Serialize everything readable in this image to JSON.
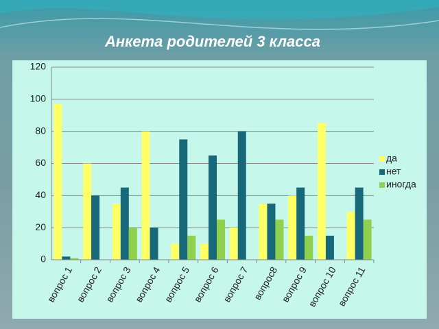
{
  "chart_data": {
    "type": "bar",
    "title": "Анкета родителей 3 класса",
    "categories": [
      "вопрос 1",
      "вопрос 2",
      "вопрос 3",
      "вопрос 4",
      "вопрос 5",
      "вопрос 6",
      "вопрос 7",
      "вопрос8",
      "вопрос 9",
      "вопрос 10",
      "вопрос 11"
    ],
    "series": [
      {
        "name": "да",
        "color": "#ffff66",
        "values": [
          97,
          60,
          35,
          80,
          10,
          10,
          20,
          35,
          40,
          85,
          30
        ]
      },
      {
        "name": "нет",
        "color": "#17687a",
        "values": [
          2,
          40,
          45,
          20,
          75,
          65,
          80,
          35,
          45,
          15,
          45
        ]
      },
      {
        "name": "иногда",
        "color": "#8fd14f",
        "values": [
          1,
          0,
          20,
          0,
          15,
          25,
          0,
          25,
          15,
          0,
          25
        ]
      }
    ],
    "ylim": [
      0,
      120
    ],
    "yticks": [
      0,
      20,
      40,
      60,
      80,
      100,
      120
    ],
    "grid": true,
    "legend": "right"
  }
}
